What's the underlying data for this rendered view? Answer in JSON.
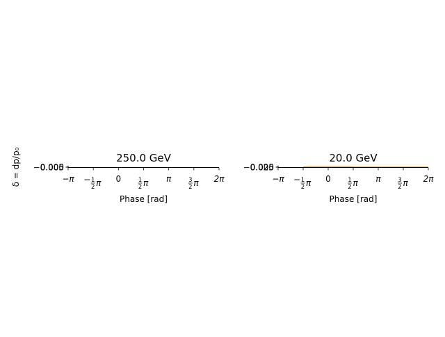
{
  "ylabel": "δ = dp/p₀",
  "chart_data": [
    {
      "type": "area",
      "title": "250.0 GeV",
      "xlabel": "Phase [rad]",
      "xlim": [
        -3.1416,
        6.2832
      ],
      "ylim": [
        -0.005,
        0.005
      ],
      "x_ticks": [
        {
          "value": -3.1416,
          "main": "−π"
        },
        {
          "value": -1.5708,
          "main": "−",
          "num": "1",
          "den": "2",
          "suffix": "π"
        },
        {
          "value": 0,
          "main": "0"
        },
        {
          "value": 1.5708,
          "num": "1",
          "den": "2",
          "suffix": "π"
        },
        {
          "value": 3.1416,
          "main": "π"
        },
        {
          "value": 4.7124,
          "num": "3",
          "den": "2",
          "suffix": "π"
        },
        {
          "value": 6.2832,
          "main": "2π"
        }
      ],
      "y_tick_labels": [
        "−0.005",
        "0.000",
        "0.005"
      ],
      "series": []
    },
    {
      "type": "area",
      "title": "20.0 GeV",
      "xlabel": "Phase [rad]",
      "xlim": [
        -3.1416,
        6.2832
      ],
      "ylim": [
        -0.025,
        0.025
      ],
      "x_ticks": [
        {
          "value": -3.1416,
          "main": "−π"
        },
        {
          "value": -1.5708,
          "main": "−",
          "num": "1",
          "den": "2",
          "suffix": "π"
        },
        {
          "value": 0,
          "main": "0"
        },
        {
          "value": 1.5708,
          "num": "1",
          "den": "2",
          "suffix": "π"
        },
        {
          "value": 3.1416,
          "main": "π"
        },
        {
          "value": 4.7124,
          "num": "3",
          "den": "2",
          "suffix": "π"
        },
        {
          "value": 6.2832,
          "main": "2π"
        }
      ],
      "y_tick_labels": [
        "−0.025",
        "0.000",
        "0.025"
      ],
      "series": [
        {
          "color": "#1f77b4",
          "x": [
            -1.57,
            1.57
          ],
          "y_range": [
            -0.001,
            0.001
          ]
        },
        {
          "color": "#ff7f0e",
          "x": [
            -1.57,
            6.2832
          ],
          "y_range": [
            -0.001,
            0.001
          ]
        }
      ]
    }
  ]
}
